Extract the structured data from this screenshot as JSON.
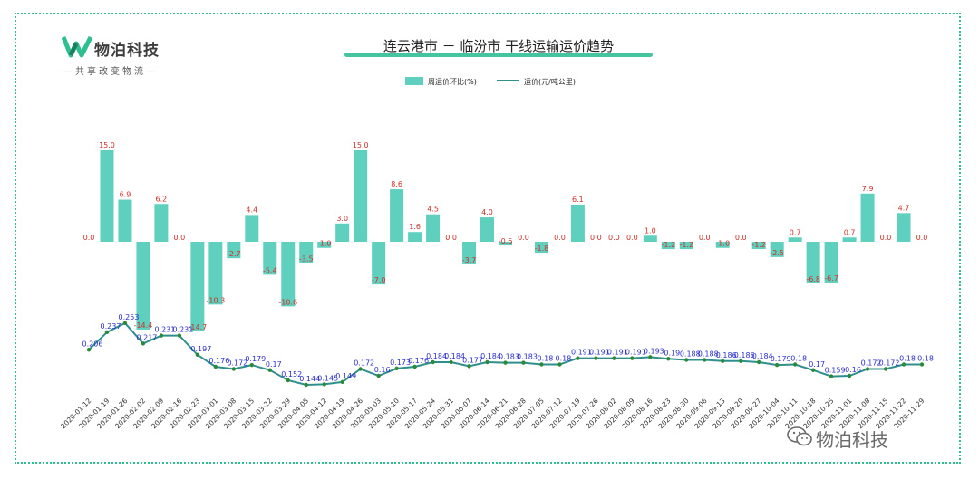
{
  "logo": {
    "name": "物泊科技",
    "slogan": "—共享改变物流—"
  },
  "watermark": "物泊科技",
  "colors": {
    "bar": "#5fcfbe",
    "line": "#2f8f8f",
    "point": "#2a8a3a",
    "bar_label": "#d0302a",
    "point_label": "#2a2fd0",
    "frame": "#2fbf8f"
  },
  "chart_data": {
    "type": "bar",
    "title": "连云港市 － 临汾市 干线运输运价趋势",
    "legend_position": "top-center",
    "categories": [
      "2020-01-12",
      "2020-01-19",
      "2020-01-26",
      "2020-02-02",
      "2020-02-09",
      "2020-02-16",
      "2020-02-23",
      "2020-03-01",
      "2020-03-08",
      "2020-03-15",
      "2020-03-22",
      "2020-03-29",
      "2020-04-05",
      "2020-04-12",
      "2020-04-19",
      "2020-04-26",
      "2020-05-03",
      "2020-05-10",
      "2020-05-17",
      "2020-05-24",
      "2020-05-31",
      "2020-06-07",
      "2020-06-14",
      "2020-06-21",
      "2020-06-28",
      "2020-07-05",
      "2020-07-12",
      "2020-07-19",
      "2020-07-26",
      "2020-08-02",
      "2020-08-09",
      "2020-08-16",
      "2020-08-23",
      "2020-08-30",
      "2020-09-06",
      "2020-09-13",
      "2020-09-20",
      "2020-09-27",
      "2020-10-04",
      "2020-10-11",
      "2020-10-18",
      "2020-10-25",
      "2020-11-01",
      "2020-11-08",
      "2020-11-15",
      "2020-11-22",
      "2020-11-29"
    ],
    "series": [
      {
        "name": "周运价环比(%)",
        "type": "bar",
        "values": [
          0.0,
          15.0,
          6.9,
          -14.4,
          6.2,
          0.0,
          -14.7,
          -10.3,
          -2.7,
          4.4,
          -5.4,
          -10.6,
          -3.5,
          -1.0,
          3.0,
          15.0,
          -7.0,
          8.6,
          1.6,
          4.5,
          0.0,
          -3.7,
          4.0,
          -0.6,
          0.0,
          -1.8,
          0.0,
          6.1,
          0.0,
          0.0,
          0.0,
          1.0,
          -1.2,
          -1.2,
          0.0,
          -1.0,
          0.0,
          -1.2,
          -2.5,
          0.7,
          -6.8,
          -6.7,
          0.7,
          7.9,
          0.0,
          4.7,
          0.0
        ],
        "labels": [
          "0.0",
          "15.0",
          "6.9",
          "-14.4",
          "6.2",
          "0.0",
          "-14.7",
          "-10.3",
          "-2.7",
          "4.4",
          "-5.4",
          "-10.6",
          "-3.5",
          "-1.0",
          "3.0",
          "15.0",
          "-7.0",
          "8.6",
          "1.6",
          "4.5",
          "0.0",
          "-3.7",
          "4.0",
          "-0.6",
          "0.0",
          "-1.8",
          "0.0",
          "6.1",
          "0.0",
          "0.0",
          "0.0",
          "1.0",
          "-1.2",
          "-1.2",
          "0.0",
          "-1.0",
          "0.0",
          "-1.2",
          "-2.5",
          "0.7",
          "-6.8",
          "-6.7",
          "0.7",
          "7.9",
          "0.0",
          "4.7",
          "0.0"
        ]
      },
      {
        "name": "运价(元/吨公里)",
        "type": "line",
        "values": [
          0.206,
          0.237,
          0.253,
          0.217,
          0.231,
          0.231,
          0.197,
          0.176,
          0.172,
          0.179,
          0.17,
          0.152,
          0.144,
          0.145,
          0.149,
          0.172,
          0.16,
          0.173,
          0.176,
          0.184,
          0.184,
          0.177,
          0.184,
          0.183,
          0.183,
          0.18,
          0.18,
          0.191,
          0.191,
          0.191,
          0.191,
          0.193,
          0.19,
          0.188,
          0.188,
          0.186,
          0.186,
          0.184,
          0.179,
          0.18,
          0.17,
          0.159,
          0.16,
          0.172,
          0.172,
          0.18,
          0.18
        ],
        "labels": [
          "0.206",
          "0.237",
          "0.253",
          "0.217",
          "0.231",
          "0.231",
          "0.197",
          "0.176",
          "0.172",
          "0.179",
          "0.17",
          "0.152",
          "0.144",
          "0.145",
          "0.149",
          "0.172",
          "0.16",
          "0.173",
          "0.176",
          "0.184",
          "0.184",
          "0.177",
          "0.184",
          "0.183",
          "0.183",
          "0.18",
          "0.18",
          "0.191",
          "0.191",
          "0.191",
          "0.191",
          "0.193",
          "0.19",
          "0.188",
          "0.188",
          "0.186",
          "0.186",
          "0.184",
          "0.179",
          "0.18",
          "0.17",
          "0.159",
          "0.16",
          "0.172",
          "0.172",
          "0.18",
          "0.18"
        ]
      }
    ],
    "xlabel": "",
    "ylabel": "",
    "bar_ylim": [
      -15,
      15
    ],
    "line_ylim": [
      0.12,
      0.28
    ],
    "grid": false
  }
}
